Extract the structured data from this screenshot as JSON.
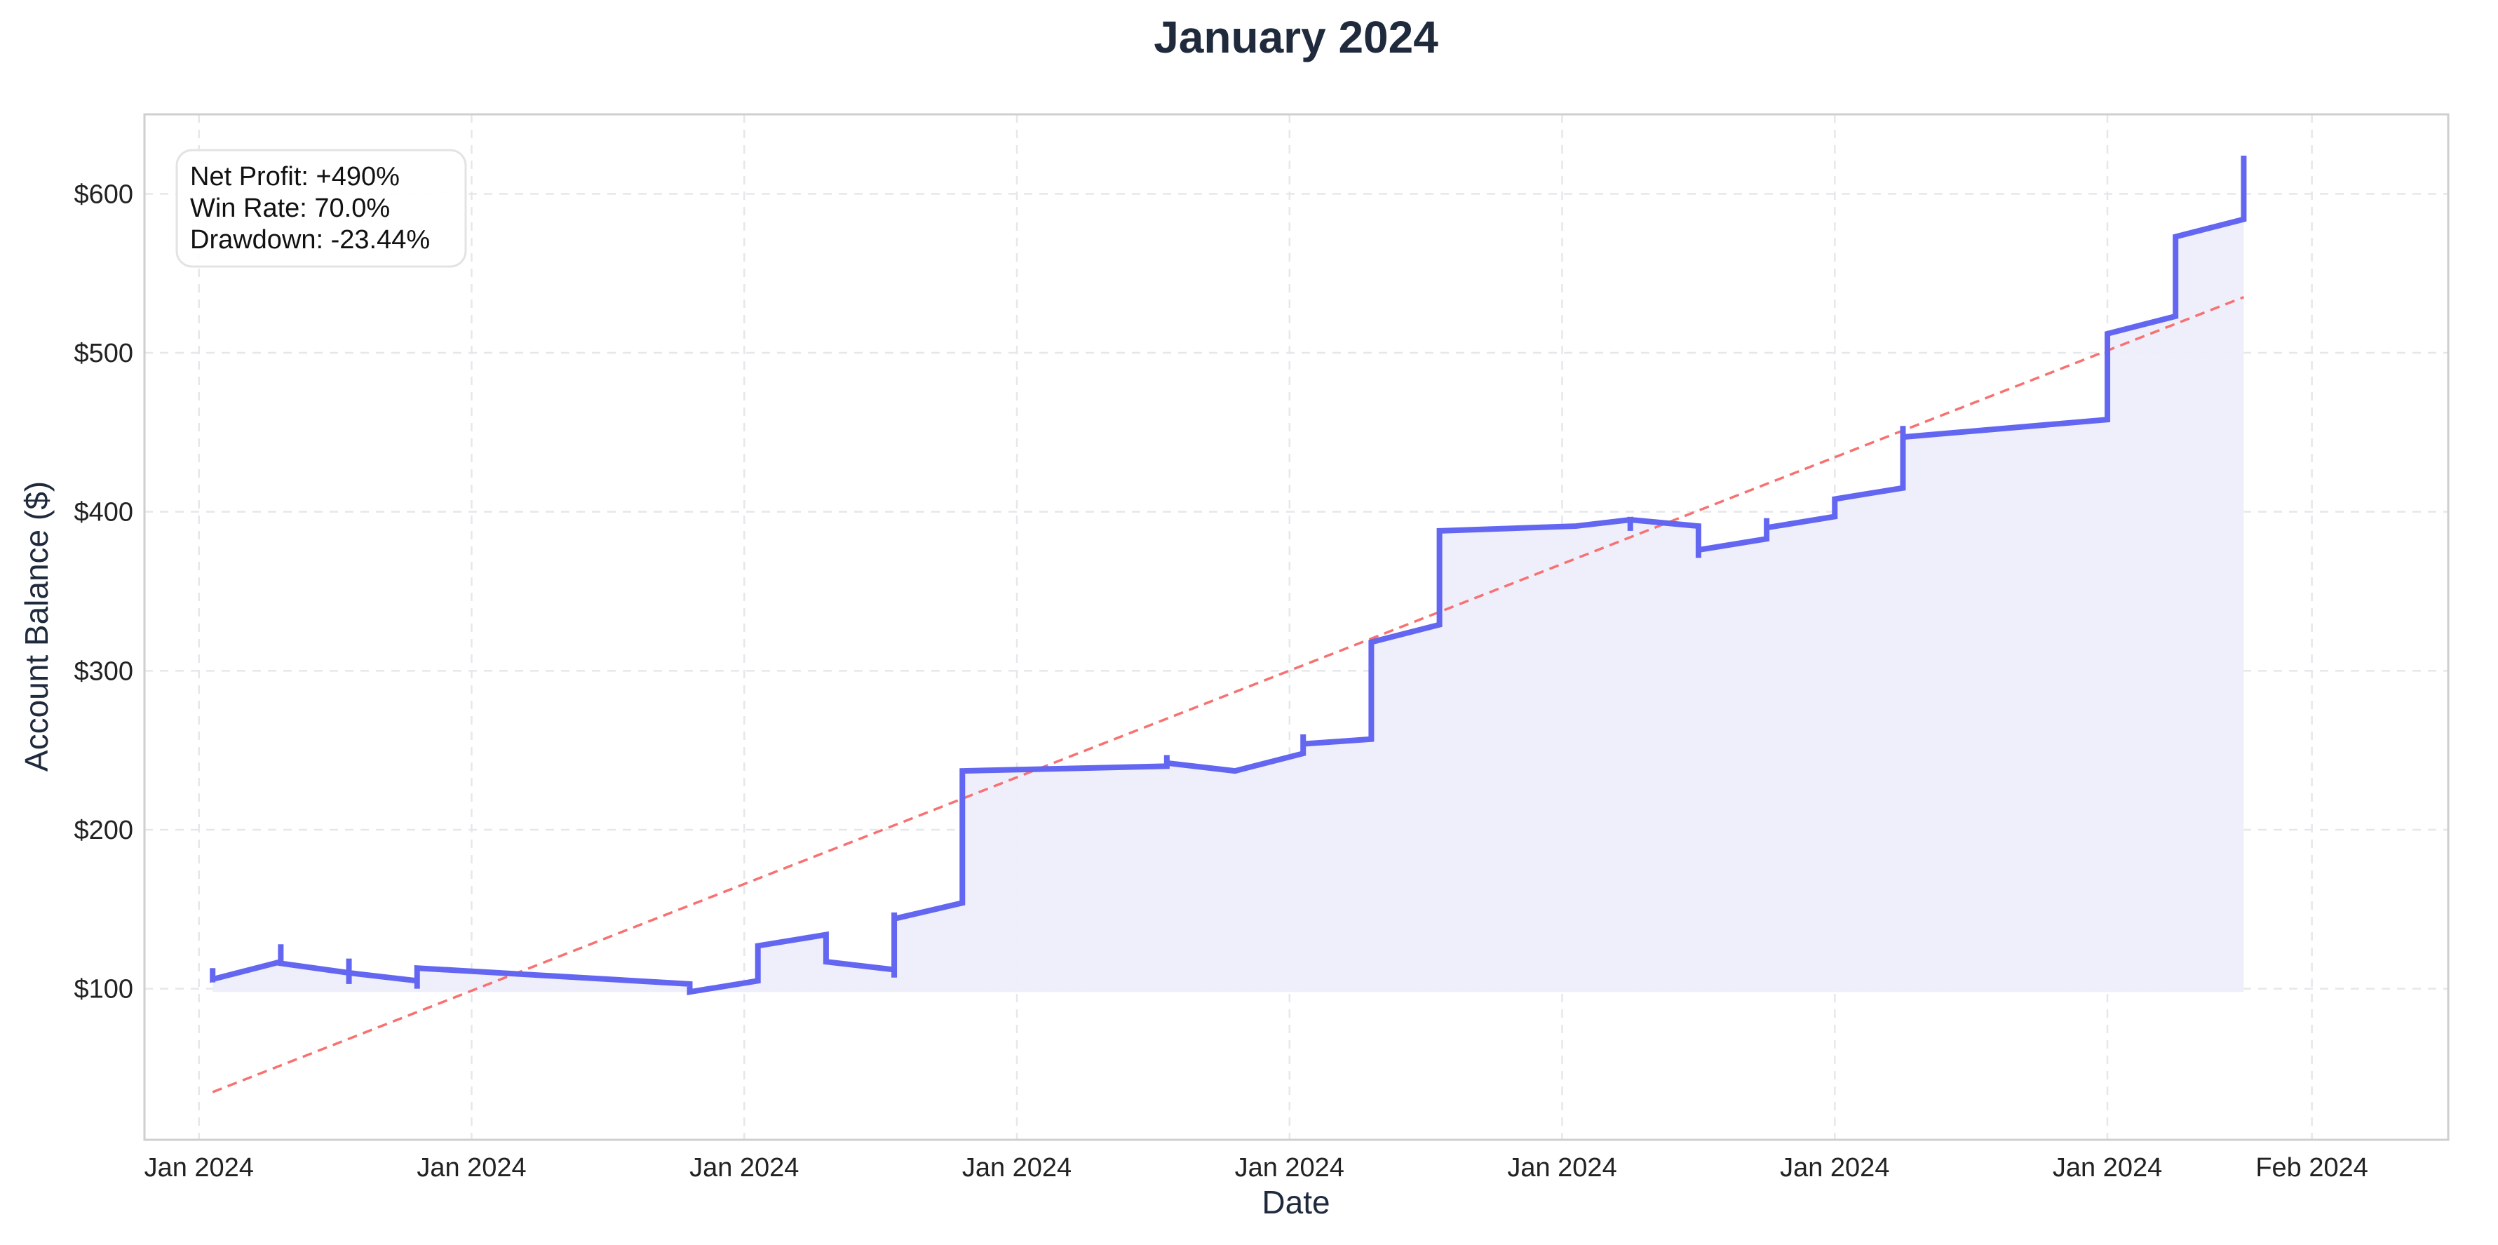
{
  "chart_data": {
    "type": "line",
    "title": "January 2024",
    "xlabel": "Date",
    "ylabel": "Account Balance ($)",
    "ylim": [
      5,
      650
    ],
    "y_ticks": [
      {
        "value": 100,
        "label": "$100"
      },
      {
        "value": 200,
        "label": "$200"
      },
      {
        "value": 300,
        "label": "$300"
      },
      {
        "value": 400,
        "label": "$400"
      },
      {
        "value": 500,
        "label": "$500"
      },
      {
        "value": 600,
        "label": "$600"
      }
    ],
    "x_ticks": [
      "Jan 2024",
      "Jan 2024",
      "Jan 2024",
      "Jan 2024",
      "Jan 2024",
      "Jan 2024",
      "Jan 2024",
      "Jan 2024",
      "Feb 2024"
    ],
    "grid": true,
    "stats": {
      "net_profit": "Net Profit: +490%",
      "win_rate": "Win Rate: 70.0%",
      "drawdown": "Drawdown: -23.44%"
    },
    "colors": {
      "balance_line": "#6366f1",
      "fill": "#eeeefc",
      "trend_line": "#f87171",
      "title": "#1f2a3d",
      "grid": "#e5e7eb"
    },
    "series": [
      {
        "kind": "balance",
        "points": [
          [
            0.1,
            104
          ],
          [
            0.1,
            113
          ],
          [
            0.1,
            106
          ],
          [
            0.6,
            117
          ],
          [
            0.6,
            128
          ],
          [
            0.6,
            116
          ],
          [
            1.1,
            110
          ],
          [
            1.1,
            103
          ],
          [
            1.1,
            119
          ],
          [
            1.1,
            110
          ],
          [
            1.6,
            105
          ],
          [
            1.6,
            100
          ],
          [
            1.6,
            113
          ],
          [
            2.6,
            108
          ],
          [
            3.6,
            103
          ],
          [
            3.6,
            98
          ],
          [
            4.1,
            105
          ],
          [
            4.1,
            127
          ],
          [
            4.6,
            134
          ],
          [
            4.6,
            117
          ],
          [
            5.1,
            112
          ],
          [
            5.1,
            107
          ],
          [
            5.1,
            148
          ],
          [
            5.1,
            144
          ],
          [
            5.6,
            154
          ],
          [
            5.6,
            237
          ],
          [
            7.1,
            240
          ],
          [
            7.1,
            247
          ],
          [
            7.1,
            242
          ],
          [
            7.6,
            237
          ],
          [
            8.1,
            248
          ],
          [
            8.1,
            260
          ],
          [
            8.1,
            254
          ],
          [
            8.6,
            257
          ],
          [
            8.6,
            318
          ],
          [
            9.1,
            329
          ],
          [
            9.1,
            388
          ],
          [
            10.1,
            391
          ],
          [
            10.5,
            395
          ],
          [
            10.5,
            388
          ],
          [
            10.5,
            395
          ],
          [
            11.0,
            391
          ],
          [
            11.0,
            371
          ],
          [
            11.0,
            376
          ],
          [
            11.5,
            383
          ],
          [
            11.5,
            396
          ],
          [
            11.5,
            390
          ],
          [
            12.0,
            397
          ],
          [
            12.0,
            408
          ],
          [
            12.5,
            415
          ],
          [
            12.5,
            454
          ],
          [
            12.5,
            447
          ],
          [
            14.0,
            458
          ],
          [
            14.0,
            512
          ],
          [
            14.5,
            523
          ],
          [
            14.5,
            573
          ],
          [
            15.0,
            584
          ],
          [
            15.0,
            624
          ]
        ]
      },
      {
        "kind": "trend",
        "points": [
          [
            0.1,
            35
          ],
          [
            15.0,
            535
          ]
        ]
      }
    ],
    "fill_baseline": 98,
    "x_range": [
      -0.4,
      16.5
    ],
    "x_tick_positions": [
      0,
      2,
      4,
      6,
      8,
      10,
      12,
      14,
      15.5
    ]
  }
}
